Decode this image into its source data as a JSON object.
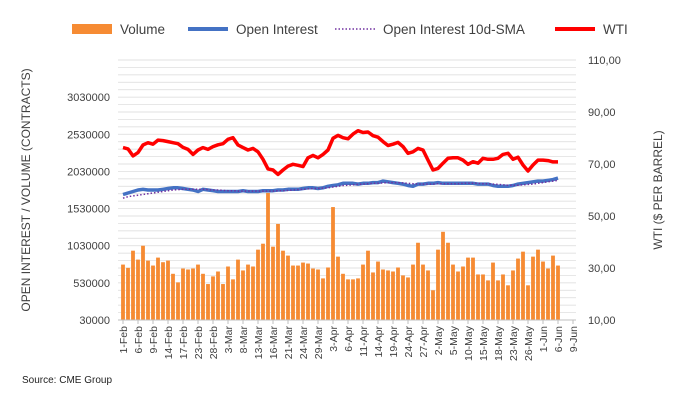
{
  "chart_data": {
    "type": "bar+line",
    "legend": {
      "position": "top",
      "entries": [
        "Volume",
        "Open Interest",
        "Open Interest 10d-SMA",
        "WTI"
      ]
    },
    "colors": {
      "volume": "#F68B33",
      "open_interest": "#4472C4",
      "sma": "#7030A0",
      "wti": "#FF0000",
      "grid": "#D9D9D9"
    },
    "ylabel_left": "OPEN INTEREST / VOLUME (CONTRACTS)",
    "ylabel_right": "WTI ($ PER BARREL)",
    "ylim_left": [
      30000,
      3530000
    ],
    "ylim_right": [
      10,
      110
    ],
    "left_ticks": [
      "30000",
      "530000",
      "1030000",
      "1530000",
      "2030000",
      "2530000",
      "3030000"
    ],
    "left_tick_values": [
      30000,
      530000,
      1030000,
      1530000,
      2030000,
      2530000,
      3030000
    ],
    "right_ticks": [
      "10,00",
      "30,00",
      "50,00",
      "70,00",
      "90,00",
      "110,00"
    ],
    "right_tick_values": [
      10,
      30,
      50,
      70,
      90,
      110
    ],
    "x_labels": [
      "1-Feb",
      "6-Feb",
      "9-Feb",
      "14-Feb",
      "17-Feb",
      "23-Feb",
      "28-Feb",
      "3-Mar",
      "8-Mar",
      "13-Mar",
      "16-Mar",
      "21-Mar",
      "24-Mar",
      "29-Mar",
      "3-Apr",
      "6-Apr",
      "11-Apr",
      "14-Apr",
      "19-Apr",
      "24-Apr",
      "27-Apr",
      "2-May",
      "5-May",
      "10-May",
      "15-May",
      "18-May",
      "23-May",
      "26-May",
      "1-Jun",
      "6-Jun",
      "9-Jun"
    ],
    "volume": [
      776000,
      732000,
      963000,
      843000,
      1030000,
      830000,
      763000,
      870000,
      808000,
      830000,
      652000,
      537000,
      723000,
      710000,
      723000,
      776000,
      652000,
      514000,
      617000,
      683000,
      514000,
      750000,
      577000,
      843000,
      697000,
      776000,
      750000,
      977000,
      1057000,
      1741000,
      1017000,
      1323000,
      963000,
      897000,
      763000,
      763000,
      803000,
      790000,
      723000,
      710000,
      590000,
      737000,
      1550000,
      883000,
      652000,
      577000,
      577000,
      590000,
      776000,
      963000,
      670000,
      817000,
      710000,
      697000,
      683000,
      737000,
      630000,
      603000,
      776000,
      1070000,
      776000,
      697000,
      430000,
      977000,
      1217000,
      1070000,
      776000,
      683000,
      750000,
      870000,
      870000,
      643000,
      643000,
      563000,
      803000,
      563000,
      643000,
      497000,
      697000,
      857000,
      950000,
      497000,
      883000,
      977000,
      817000,
      723000,
      897000,
      763000
    ],
    "open_interest": [
      1720000,
      1740000,
      1760000,
      1780000,
      1790000,
      1780000,
      1780000,
      1780000,
      1790000,
      1800000,
      1810000,
      1810000,
      1800000,
      1790000,
      1780000,
      1760000,
      1790000,
      1780000,
      1770000,
      1760000,
      1760000,
      1760000,
      1760000,
      1760000,
      1770000,
      1760000,
      1760000,
      1760000,
      1770000,
      1770000,
      1770000,
      1780000,
      1780000,
      1790000,
      1790000,
      1790000,
      1800000,
      1810000,
      1810000,
      1800000,
      1810000,
      1830000,
      1840000,
      1850000,
      1870000,
      1870000,
      1870000,
      1860000,
      1870000,
      1870000,
      1880000,
      1880000,
      1900000,
      1890000,
      1880000,
      1870000,
      1860000,
      1840000,
      1830000,
      1860000,
      1860000,
      1870000,
      1870000,
      1880000,
      1870000,
      1870000,
      1870000,
      1870000,
      1870000,
      1870000,
      1870000,
      1860000,
      1860000,
      1860000,
      1840000,
      1830000,
      1830000,
      1830000,
      1840000,
      1860000,
      1870000,
      1880000,
      1890000,
      1900000,
      1900000,
      1910000,
      1920000,
      1940000
    ],
    "open_interest_sma": [
      1670000,
      1690000,
      1700000,
      1710000,
      1720000,
      1730000,
      1740000,
      1750000,
      1760000,
      1770000,
      1780000,
      1785000,
      1790000,
      1790000,
      1790000,
      1790000,
      1790000,
      1785000,
      1780000,
      1780000,
      1775000,
      1770000,
      1770000,
      1765000,
      1765000,
      1765000,
      1765000,
      1765000,
      1765000,
      1765000,
      1765000,
      1770000,
      1770000,
      1775000,
      1780000,
      1785000,
      1790000,
      1795000,
      1800000,
      1800000,
      1805000,
      1810000,
      1820000,
      1830000,
      1840000,
      1845000,
      1850000,
      1855000,
      1860000,
      1865000,
      1870000,
      1870000,
      1875000,
      1880000,
      1880000,
      1880000,
      1875000,
      1870000,
      1865000,
      1860000,
      1860000,
      1860000,
      1860000,
      1865000,
      1865000,
      1865000,
      1865000,
      1865000,
      1870000,
      1870000,
      1870000,
      1870000,
      1865000,
      1865000,
      1860000,
      1855000,
      1850000,
      1845000,
      1845000,
      1845000,
      1850000,
      1855000,
      1860000,
      1870000,
      1880000,
      1890000,
      1900000,
      1910000
    ],
    "wti": [
      76.3,
      75.8,
      73.1,
      74.4,
      77.3,
      78.2,
      77.6,
      79.2,
      79.0,
      78.6,
      78.2,
      77.8,
      76.4,
      75.6,
      73.7,
      75.4,
      76.3,
      75.6,
      76.7,
      77.4,
      77.8,
      79.5,
      80.1,
      77.3,
      76.3,
      75.4,
      76.0,
      74.7,
      71.8,
      68.1,
      67.7,
      66.0,
      67.7,
      69.2,
      69.9,
      69.5,
      69.0,
      72.4,
      73.3,
      72.4,
      73.7,
      75.4,
      79.9,
      81.0,
      80.1,
      79.7,
      81.5,
      82.8,
      82.1,
      82.3,
      80.9,
      80.3,
      78.6,
      77.1,
      77.6,
      78.3,
      76.7,
      74.1,
      74.7,
      76.0,
      75.4,
      71.5,
      67.7,
      68.3,
      70.3,
      72.2,
      72.4,
      72.4,
      71.5,
      69.9,
      70.9,
      70.3,
      72.2,
      71.8,
      71.8,
      72.2,
      73.7,
      74.1,
      71.8,
      72.6,
      69.6,
      67.3,
      69.6,
      71.5,
      71.5,
      71.3,
      70.8,
      70.8
    ]
  },
  "source": "Source: CME Group"
}
